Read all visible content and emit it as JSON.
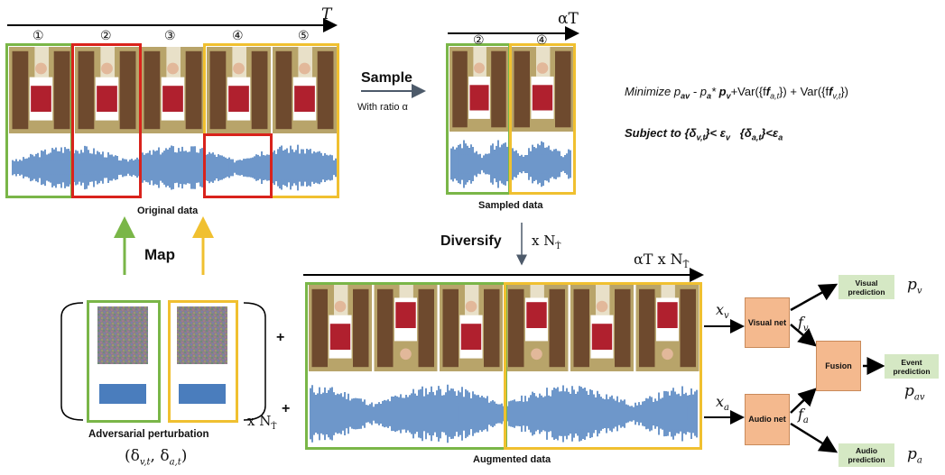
{
  "timeline": {
    "full_label": "T",
    "sampled_label": "αT",
    "augmented_label": "αT x N",
    "augmented_sub": "T̂",
    "segment_markers": [
      "①",
      "②",
      "③",
      "④",
      "⑤"
    ],
    "sampled_markers": [
      "②",
      "④"
    ]
  },
  "sample": {
    "label": "Sample",
    "caption": "With ratio α"
  },
  "diversify": {
    "label": "Diversify",
    "multiplier": "x N",
    "sub": "T̂"
  },
  "map": {
    "label": "Map"
  },
  "captions": {
    "original": "Original data",
    "sampled": "Sampled data",
    "augmented": "Augmented data",
    "perturbation": "Adversarial perturbation",
    "perturbation_symbol": "(δ",
    "perturbation_multiplier": "x N"
  },
  "plus_signs": [
    "+",
    "+"
  ],
  "objective": {
    "minimize": "Minimize p",
    "minimize_rest": " - p",
    "line1_tail": "+Var({f",
    "line1_tail2": "}) + Var({f",
    "subject": "Subject to {δ",
    "subject_tail": "}< ε",
    "subject_tail2": "   {δ",
    "subject_tail3": "}<ε"
  },
  "network": {
    "visual_net": "Visual net",
    "audio_net": "Audio net",
    "fusion": "Fusion",
    "visual_prediction": "Visual prediction",
    "audio_prediction": "Audio prediction",
    "event_prediction": "Event prediction",
    "xv": "x",
    "xa": "x",
    "fv": "f",
    "fa": "f",
    "pv": "p",
    "pa": "p",
    "pav": "p"
  },
  "colors": {
    "green": "#7ab648",
    "yellow": "#f0c030",
    "red": "#d9231c",
    "waveform": "#4a7dbd",
    "node": "#f4b98e",
    "prediction": "#d5e8c4"
  }
}
